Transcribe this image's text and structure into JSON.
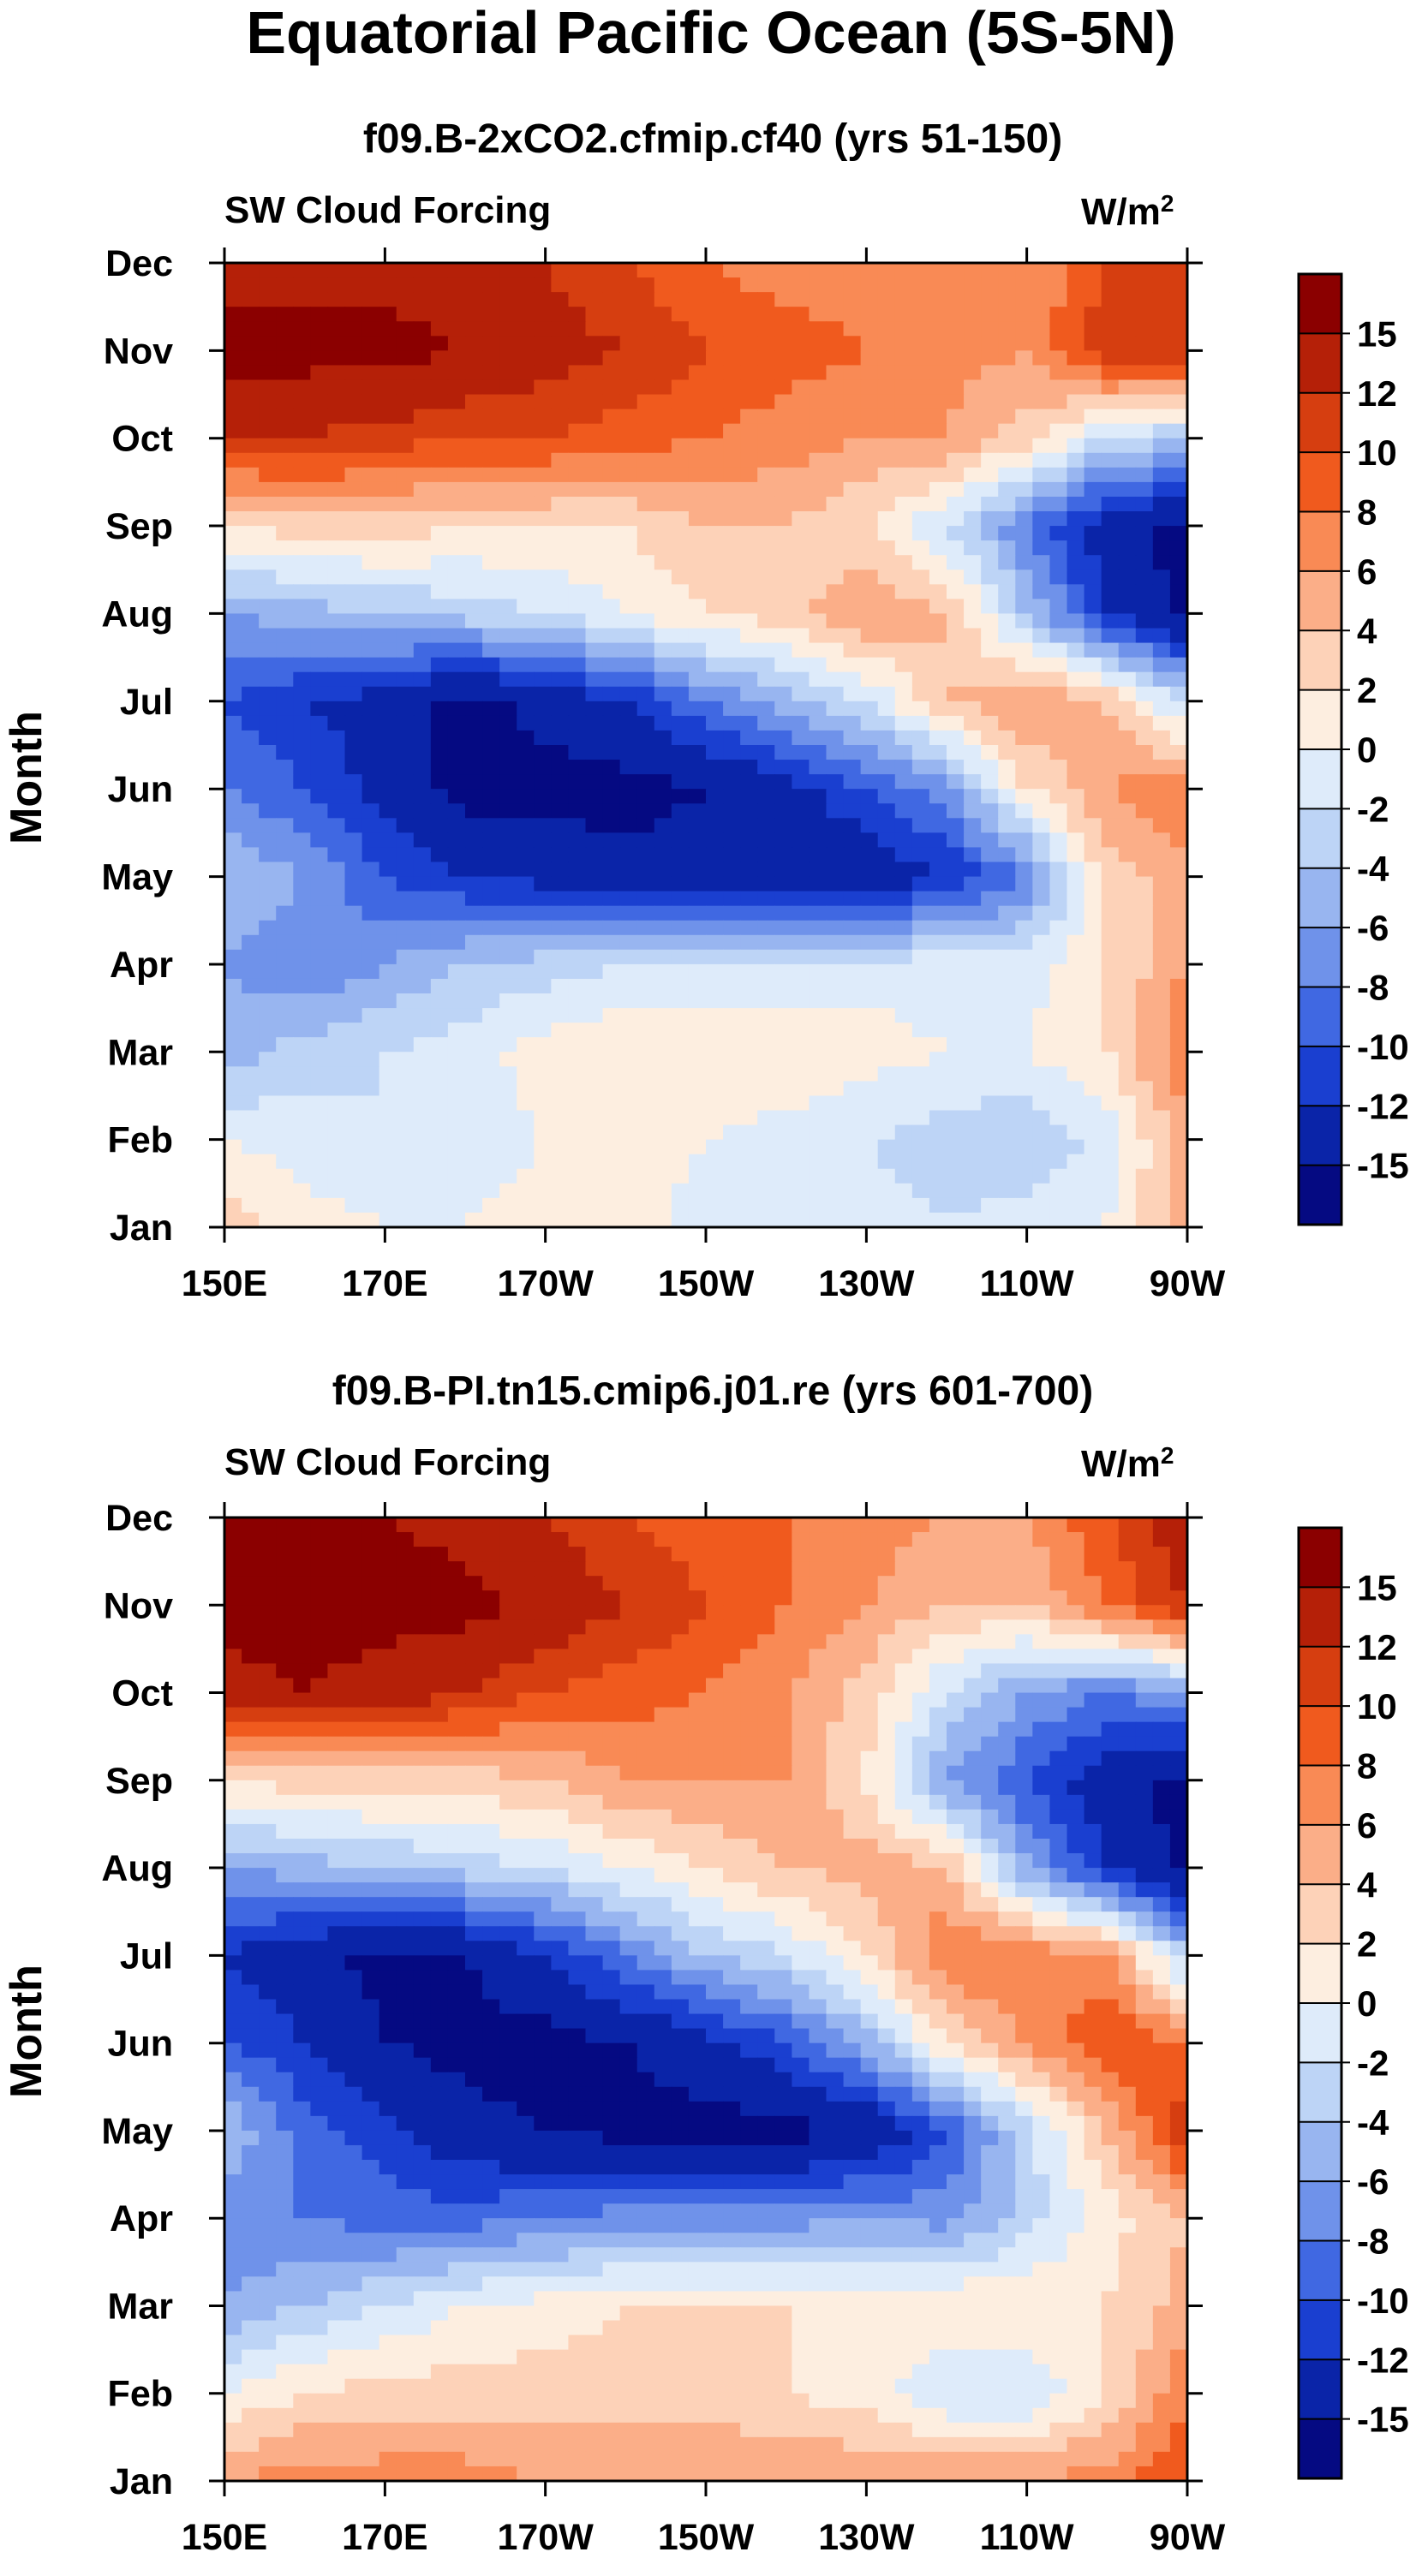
{
  "figure": {
    "title": "Equatorial Pacific Ocean (5S-5N)"
  },
  "chart_data": [
    {
      "type": "heatmap",
      "subtitle": "f09.B-2xCO2.cfmip.cf40 (yrs 51-150)",
      "left_label": "SW Cloud Forcing",
      "units_base": "W/m",
      "units_exp": "2",
      "ylabel": "Month",
      "xlabel": "",
      "x_ticks": [
        "150E",
        "170E",
        "170W",
        "150W",
        "130W",
        "110W",
        "90W"
      ],
      "y_ticks": [
        "Jan",
        "Feb",
        "Mar",
        "Apr",
        "May",
        "Jun",
        "Jul",
        "Aug",
        "Sep",
        "Oct",
        "Nov",
        "Dec"
      ],
      "colorbar": {
        "labels": [
          "15",
          "12",
          "10",
          "8",
          "6",
          "4",
          "2",
          "0",
          "-2",
          "-4",
          "-6",
          "-8",
          "-10",
          "-12",
          "-15"
        ],
        "colors_top_to_bottom": [
          "#8b0000",
          "#b52008",
          "#d63e10",
          "#f05a1e",
          "#f98a55",
          "#fbae88",
          "#fdd2b8",
          "#fdeee0",
          "#deebfa",
          "#bdd4f6",
          "#98b5f0",
          "#6f92ea",
          "#4068e2",
          "#1a3fd0",
          "#0a24a8",
          "#050a82"
        ]
      },
      "lon_degE": [
        150,
        160,
        170,
        180,
        190,
        200,
        210,
        220,
        230,
        240,
        250,
        260,
        270
      ],
      "z": [
        [
          3,
          1,
          0,
          0,
          1,
          1,
          -1,
          -1,
          -1,
          -2,
          -1,
          0,
          5
        ],
        [
          0,
          -1,
          -2,
          -1,
          0,
          1,
          0,
          -1,
          -2,
          -3,
          -4,
          -1,
          5
        ],
        [
          -5,
          -3,
          -2,
          -1,
          1,
          2,
          2,
          2,
          1,
          0,
          0,
          2,
          8
        ],
        [
          -6,
          -8,
          -6,
          -4,
          -3,
          -2,
          -2,
          -2,
          -1,
          -1,
          -1,
          2,
          6
        ],
        [
          -4,
          -6,
          -10,
          -12,
          -13,
          -14,
          -14,
          -15,
          -14,
          -12,
          -8,
          3,
          5
        ],
        [
          -8,
          -10,
          -13,
          -16,
          -16,
          -16,
          -15,
          -13,
          -10,
          -7,
          2,
          6,
          8
        ],
        [
          -10,
          -12,
          -13,
          -16,
          -14,
          -12,
          -8,
          -5,
          -2,
          4,
          6,
          4,
          -3
        ],
        [
          -6,
          -5,
          -4,
          -3,
          -2,
          0,
          2,
          3,
          6,
          4,
          -4,
          -12,
          -16
        ],
        [
          2,
          3,
          3,
          2,
          2,
          2,
          4,
          4,
          2,
          -2,
          -8,
          -14,
          -16
        ],
        [
          12,
          12,
          11,
          10,
          10,
          9,
          8,
          7,
          6,
          6,
          3,
          -2,
          -4
        ],
        [
          16,
          16,
          16,
          15,
          13,
          12,
          10,
          9,
          8,
          7,
          6,
          12,
          12
        ],
        [
          14,
          14,
          14,
          13,
          12,
          10,
          8,
          7,
          7,
          6,
          6,
          10,
          10
        ]
      ]
    },
    {
      "type": "heatmap",
      "subtitle": "f09.B-PI.tn15.cmip6.j01.re (yrs 601-700)",
      "left_label": "SW Cloud Forcing",
      "units_base": "W/m",
      "units_exp": "2",
      "ylabel": "Month",
      "xlabel": "",
      "x_ticks": [
        "150E",
        "170E",
        "170W",
        "150W",
        "130W",
        "110W",
        "90W"
      ],
      "y_ticks": [
        "Jan",
        "Feb",
        "Mar",
        "Apr",
        "May",
        "Jun",
        "Jul",
        "Aug",
        "Sep",
        "Oct",
        "Nov",
        "Dec"
      ],
      "colorbar": {
        "labels": [
          "15",
          "12",
          "10",
          "8",
          "6",
          "4",
          "2",
          "0",
          "-2",
          "-4",
          "-6",
          "-8",
          "-10",
          "-12",
          "-15"
        ],
        "colors_top_to_bottom": [
          "#8b0000",
          "#b52008",
          "#d63e10",
          "#f05a1e",
          "#f98a55",
          "#fbae88",
          "#fdd2b8",
          "#fdeee0",
          "#deebfa",
          "#bdd4f6",
          "#98b5f0",
          "#6f92ea",
          "#4068e2",
          "#1a3fd0",
          "#0a24a8",
          "#050a82"
        ]
      },
      "lon_degE": [
        150,
        160,
        170,
        180,
        190,
        200,
        210,
        220,
        230,
        240,
        250,
        260,
        270
      ],
      "z": [
        [
          6,
          7,
          7,
          7,
          6,
          6,
          6,
          6,
          6,
          6,
          6,
          7,
          10
        ],
        [
          0,
          2,
          3,
          3,
          3,
          3,
          3,
          2,
          1,
          -2,
          -2,
          2,
          8
        ],
        [
          -6,
          -4,
          -2,
          0,
          1,
          2,
          2,
          2,
          2,
          2,
          2,
          2,
          5
        ],
        [
          -7,
          -8,
          -9,
          -9,
          -8,
          -7,
          -7,
          -7,
          -6,
          -7,
          -3,
          1,
          4
        ],
        [
          -4,
          -9,
          -11,
          -14,
          -15,
          -16,
          -16,
          -16,
          -15,
          -10,
          -3,
          4,
          12
        ],
        [
          -10,
          -12,
          -15,
          -16,
          -16,
          -15,
          -13,
          -10,
          -5,
          2,
          6,
          10,
          8
        ],
        [
          -12,
          -14,
          -16,
          -15,
          -12,
          -8,
          -4,
          -2,
          2,
          8,
          8,
          6,
          -4
        ],
        [
          -6,
          -5,
          -4,
          -3,
          -2,
          0,
          2,
          4,
          5,
          4,
          -6,
          -12,
          -16
        ],
        [
          2,
          3,
          3,
          3,
          4,
          6,
          6,
          6,
          2,
          -6,
          -10,
          -14,
          -16
        ],
        [
          14,
          15,
          14,
          12,
          10,
          9,
          8,
          6,
          3,
          -2,
          -6,
          -8,
          -6
        ],
        [
          16,
          16,
          16,
          16,
          14,
          12,
          10,
          8,
          6,
          4,
          4,
          8,
          12
        ],
        [
          15,
          15,
          15,
          14,
          12,
          10,
          9,
          8,
          7,
          6,
          6,
          10,
          14
        ]
      ]
    }
  ]
}
